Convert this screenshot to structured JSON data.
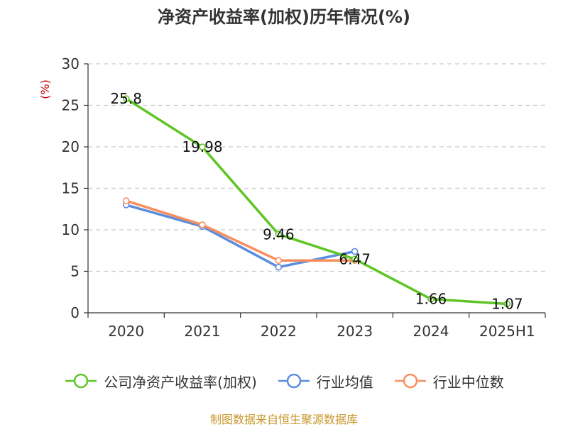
{
  "title": "净资产收益率(加权)历年情况(%)",
  "source": "制图数据来自恒生聚源数据库",
  "colors": {
    "axis": "#333333",
    "grid": "#cccccc",
    "unit": "#cc0000",
    "source": "#c8962a"
  },
  "chart_data": {
    "type": "line",
    "title": "净资产收益率(加权)历年情况(%)",
    "ylabel": "(%)",
    "xlabel": "",
    "categories": [
      "2020",
      "2021",
      "2022",
      "2023",
      "2024",
      "2025H1"
    ],
    "ylim": [
      0,
      30
    ],
    "yticks": [
      "0",
      "5",
      "10",
      "15",
      "20",
      "25",
      "30"
    ],
    "grid": true,
    "legend_position": "bottom",
    "series": [
      {
        "name": "公司净资产收益率(加权)",
        "color": "#5ec524",
        "values": [
          25.8,
          19.98,
          9.46,
          6.47,
          1.66,
          1.07
        ],
        "labels": [
          "25.8",
          "19.98",
          "9.46",
          "6.47",
          "1.66",
          "1.07"
        ]
      },
      {
        "name": "行业均值",
        "color": "#5b8ddf",
        "values": [
          13.0,
          10.4,
          5.5,
          7.4,
          null,
          null
        ]
      },
      {
        "name": "行业中位数",
        "color": "#f79060",
        "values": [
          13.5,
          10.6,
          6.3,
          6.3,
          null,
          null
        ]
      }
    ]
  }
}
